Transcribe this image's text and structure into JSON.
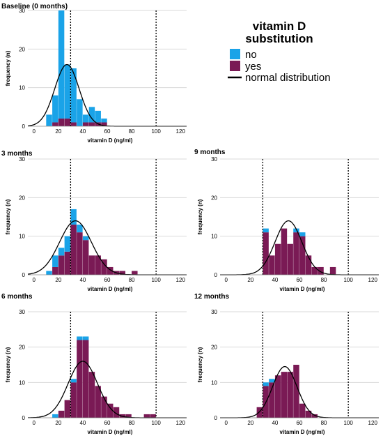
{
  "legend": {
    "title_line1": "vitamin D",
    "title_line2": "substitution",
    "items": [
      {
        "label": "no",
        "color": "#1aa3e8"
      },
      {
        "label": "yes",
        "color": "#7a1a55"
      },
      {
        "label": "normal distribution",
        "color": "#000000"
      }
    ]
  },
  "colors": {
    "no": "#1aa3e8",
    "yes": "#7a1a55",
    "grid": "#d9d9d9",
    "curve": "#000000",
    "reference_line": "#000000"
  },
  "chart_data": [
    {
      "type": "bar",
      "title": "Baseline (0 months)",
      "xlabel": "vitamin D (ng/ml)",
      "ylabel": "frequency (n)",
      "xlim": [
        -5,
        125
      ],
      "ylim": [
        0,
        30
      ],
      "x_ticks": [
        0,
        20,
        40,
        60,
        80,
        100,
        120
      ],
      "y_ticks": [
        0,
        10,
        20,
        30
      ],
      "reference_lines": [
        30,
        100
      ],
      "grid": true,
      "bin_width": 5,
      "series": [
        {
          "name": "no",
          "bins": [
            [
              10,
              3
            ],
            [
              15,
              7
            ],
            [
              20,
              28
            ],
            [
              25,
              14
            ],
            [
              30,
              14
            ],
            [
              35,
              7
            ],
            [
              40,
              2
            ],
            [
              45,
              4
            ],
            [
              50,
              3
            ],
            [
              55,
              1
            ]
          ]
        },
        {
          "name": "yes",
          "bins": [
            [
              15,
              1
            ],
            [
              20,
              2
            ],
            [
              25,
              2
            ],
            [
              30,
              1
            ],
            [
              35,
              0
            ],
            [
              40,
              1
            ],
            [
              45,
              1
            ],
            [
              50,
              1
            ],
            [
              55,
              1
            ]
          ]
        }
      ],
      "normal_curve": {
        "mean": 27,
        "sd": 10,
        "peak": 16
      }
    },
    {
      "type": "bar",
      "title": "3 months",
      "xlabel": "vitamin D (ng/ml)",
      "ylabel": "frequency (n)",
      "xlim": [
        -5,
        125
      ],
      "ylim": [
        0,
        30
      ],
      "x_ticks": [
        0,
        20,
        40,
        60,
        80,
        100,
        120
      ],
      "y_ticks": [
        0,
        10,
        20,
        30
      ],
      "reference_lines": [
        30,
        100
      ],
      "grid": true,
      "bin_width": 5,
      "series": [
        {
          "name": "no",
          "bins": [
            [
              10,
              1
            ],
            [
              15,
              3
            ],
            [
              20,
              2
            ],
            [
              25,
              4
            ],
            [
              30,
              4
            ],
            [
              35,
              2
            ],
            [
              40,
              1
            ]
          ]
        },
        {
          "name": "yes",
          "bins": [
            [
              15,
              2
            ],
            [
              20,
              5
            ],
            [
              25,
              6
            ],
            [
              30,
              13
            ],
            [
              35,
              11
            ],
            [
              40,
              9
            ],
            [
              45,
              5
            ],
            [
              50,
              5
            ],
            [
              55,
              4
            ],
            [
              60,
              2
            ],
            [
              65,
              1
            ],
            [
              70,
              1
            ],
            [
              80,
              1
            ]
          ]
        }
      ],
      "normal_curve": {
        "mean": 34,
        "sd": 13,
        "peak": 14
      }
    },
    {
      "type": "bar",
      "title": "9 months",
      "xlabel": "vitamin D (ng/ml)",
      "ylabel": "frequency (n)",
      "xlim": [
        -5,
        125
      ],
      "ylim": [
        0,
        30
      ],
      "x_ticks": [
        0,
        20,
        40,
        60,
        80,
        100,
        120
      ],
      "y_ticks": [
        0,
        10,
        20,
        30
      ],
      "reference_lines": [
        30,
        100
      ],
      "grid": true,
      "bin_width": 5,
      "series": [
        {
          "name": "no",
          "bins": [
            [
              30,
              1
            ],
            [
              55,
              1
            ],
            [
              60,
              1
            ]
          ]
        },
        {
          "name": "yes",
          "bins": [
            [
              30,
              11
            ],
            [
              35,
              5
            ],
            [
              40,
              8
            ],
            [
              45,
              12
            ],
            [
              50,
              8
            ],
            [
              55,
              11
            ],
            [
              60,
              10
            ],
            [
              65,
              5
            ],
            [
              70,
              2
            ],
            [
              75,
              2
            ],
            [
              85,
              2
            ]
          ]
        }
      ],
      "normal_curve": {
        "mean": 51,
        "sd": 11,
        "peak": 14
      }
    },
    {
      "type": "bar",
      "title": "6 months",
      "xlabel": "vitamin D (ng/ml)",
      "ylabel": "frequency (n)",
      "xlim": [
        -5,
        125
      ],
      "ylim": [
        0,
        30
      ],
      "x_ticks": [
        0,
        20,
        40,
        60,
        80,
        100,
        120
      ],
      "y_ticks": [
        0,
        10,
        20,
        30
      ],
      "reference_lines": [
        30,
        100
      ],
      "grid": true,
      "bin_width": 5,
      "series": [
        {
          "name": "no",
          "bins": [
            [
              15,
              1
            ],
            [
              30,
              1
            ],
            [
              35,
              1
            ],
            [
              40,
              1
            ]
          ]
        },
        {
          "name": "yes",
          "bins": [
            [
              20,
              2
            ],
            [
              25,
              5
            ],
            [
              30,
              10
            ],
            [
              35,
              22
            ],
            [
              40,
              22
            ],
            [
              45,
              13
            ],
            [
              50,
              9
            ],
            [
              55,
              6
            ],
            [
              60,
              4
            ],
            [
              65,
              3
            ],
            [
              70,
              1
            ],
            [
              75,
              1
            ],
            [
              90,
              1
            ],
            [
              95,
              1
            ]
          ]
        }
      ],
      "normal_curve": {
        "mean": 40,
        "sd": 12,
        "peak": 16
      }
    },
    {
      "type": "bar",
      "title": "12 months",
      "xlabel": "vitamin D (ng/ml)",
      "ylabel": "frequency (n)",
      "xlim": [
        -5,
        125
      ],
      "ylim": [
        0,
        30
      ],
      "x_ticks": [
        0,
        20,
        40,
        60,
        80,
        100,
        120
      ],
      "y_ticks": [
        0,
        10,
        20,
        30
      ],
      "reference_lines": [
        30,
        100
      ],
      "grid": true,
      "bin_width": 5,
      "series": [
        {
          "name": "no",
          "bins": [
            [
              30,
              1
            ],
            [
              35,
              1
            ]
          ]
        },
        {
          "name": "yes",
          "bins": [
            [
              25,
              3
            ],
            [
              30,
              9
            ],
            [
              35,
              10
            ],
            [
              40,
              12
            ],
            [
              45,
              13
            ],
            [
              50,
              13
            ],
            [
              55,
              15
            ],
            [
              60,
              4
            ],
            [
              65,
              2
            ],
            [
              70,
              1
            ]
          ]
        }
      ],
      "normal_curve": {
        "mean": 48,
        "sd": 10,
        "peak": 14.5
      }
    }
  ]
}
